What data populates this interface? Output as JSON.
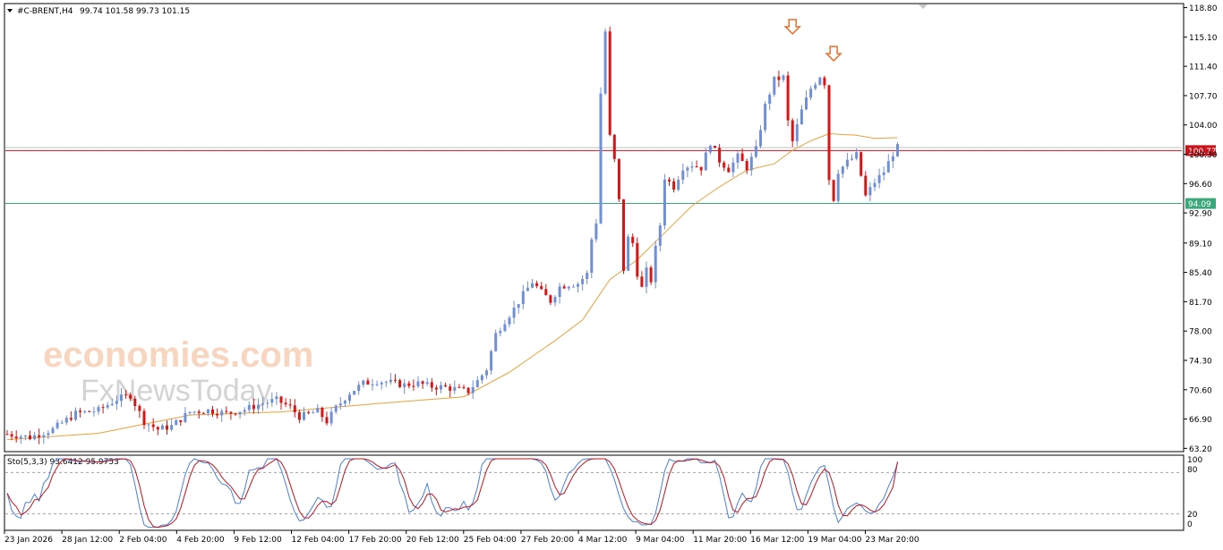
{
  "header": {
    "symbol": "#C-BRENT,H4",
    "ohlc": "99.74 101.58 99.73 101.15"
  },
  "stoch": {
    "label": "Sto(5,3,3) 93.6412 95.9753",
    "levels": [
      "100",
      "80",
      "20",
      "0"
    ]
  },
  "watermark": {
    "line1": "economies.com",
    "line2": "FxNewsToday"
  },
  "colors": {
    "bull": "#6f8fd6",
    "bear": "#d81414",
    "ma": "#e8a13c",
    "resistance": "#c8141c",
    "support": "#3aa87a",
    "arrow": "#e86f2c",
    "stoch_main": "#4a7fd6",
    "stoch_signal": "#c0141c"
  },
  "chart_data": {
    "type": "candlestick",
    "title": "#C-BRENT,H4",
    "y_ticks": [
      118.8,
      115.1,
      111.4,
      107.7,
      104.0,
      100.3,
      96.6,
      92.9,
      89.1,
      85.4,
      81.7,
      78.0,
      74.3,
      70.6,
      66.9,
      63.2
    ],
    "ylim": [
      62.9,
      119.2
    ],
    "x_ticks": [
      "23 Jan 2026",
      "28 Jan 12:00",
      "2 Feb 04:00",
      "4 Feb 20:00",
      "9 Feb 12:00",
      "12 Feb 04:00",
      "17 Feb 20:00",
      "20 Feb 12:00",
      "25 Feb 04:00",
      "27 Feb 20:00",
      "4 Mar 12:00",
      "9 Mar 04:00",
      "11 Mar 20:00",
      "16 Mar 12:00",
      "19 Mar 04:00",
      "23 Mar 20:00"
    ],
    "price_levels": [
      {
        "name": "resistance",
        "value": 100.77,
        "label": "100.77"
      },
      {
        "name": "support",
        "value": 94.09,
        "label": "94.09"
      }
    ],
    "current_price": 101.15,
    "indicator": {
      "name": "Sto(5,3,3)",
      "main": 93.6412,
      "signal": 95.9753,
      "levels": [
        0,
        20,
        80,
        100
      ]
    },
    "path": [
      [
        0,
        65.0
      ],
      [
        5,
        64.6
      ],
      [
        10,
        65.6
      ],
      [
        15,
        67.6
      ],
      [
        20,
        68.0
      ],
      [
        24,
        69.4
      ],
      [
        27,
        69.9
      ],
      [
        30,
        66.6
      ],
      [
        33,
        65.6
      ],
      [
        36,
        66.0
      ],
      [
        40,
        67.8
      ],
      [
        44,
        68.0
      ],
      [
        48,
        67.6
      ],
      [
        52,
        68.1
      ],
      [
        56,
        68.9
      ],
      [
        59,
        69.3
      ],
      [
        62,
        68.4
      ],
      [
        64,
        67.2
      ],
      [
        66,
        67.5
      ],
      [
        68,
        67.9
      ],
      [
        70,
        66.6
      ],
      [
        72,
        68.3
      ],
      [
        75,
        70.2
      ],
      [
        78,
        71.4
      ],
      [
        81,
        71.7
      ],
      [
        84,
        71.5
      ],
      [
        87,
        71.2
      ],
      [
        90,
        71.4
      ],
      [
        93,
        71.0
      ],
      [
        96,
        70.9
      ],
      [
        99,
        70.6
      ],
      [
        101,
        70.4
      ],
      [
        103,
        71.7
      ],
      [
        105,
        73.2
      ],
      [
        107,
        77.6
      ],
      [
        109,
        79.3
      ],
      [
        111,
        80.8
      ],
      [
        113,
        82.6
      ],
      [
        115,
        84.2
      ],
      [
        117,
        82.9
      ],
      [
        119,
        81.8
      ],
      [
        121,
        83.6
      ],
      [
        123,
        83.9
      ],
      [
        125,
        84.0
      ],
      [
        127,
        85.2
      ],
      [
        128,
        89.6
      ],
      [
        129,
        91.8
      ],
      [
        130,
        108.0
      ],
      [
        131,
        115.8
      ],
      [
        132,
        102.5
      ],
      [
        133,
        99.5
      ],
      [
        134,
        94.4
      ],
      [
        135,
        85.8
      ],
      [
        136,
        89.7
      ],
      [
        137,
        89.1
      ],
      [
        138,
        85.3
      ],
      [
        139,
        83.4
      ],
      [
        140,
        85.6
      ],
      [
        141,
        84.4
      ],
      [
        142,
        88.4
      ],
      [
        143,
        91.4
      ],
      [
        144,
        97.4
      ],
      [
        146,
        96.2
      ],
      [
        148,
        98.7
      ],
      [
        150,
        99.0
      ],
      [
        152,
        98.6
      ],
      [
        154,
        101.8
      ],
      [
        156,
        99.5
      ],
      [
        158,
        98.4
      ],
      [
        160,
        100.0
      ],
      [
        162,
        98.6
      ],
      [
        164,
        100.9
      ],
      [
        166,
        106.4
      ],
      [
        168,
        109.7
      ],
      [
        170,
        110.0
      ],
      [
        171,
        104.4
      ],
      [
        172,
        101.9
      ],
      [
        174,
        105.8
      ],
      [
        176,
        108.6
      ],
      [
        178,
        110.2
      ],
      [
        179,
        109.3
      ],
      [
        180,
        97.2
      ],
      [
        181,
        94.7
      ],
      [
        182,
        98.2
      ],
      [
        184,
        99.3
      ],
      [
        186,
        100.2
      ],
      [
        188,
        95.0
      ],
      [
        190,
        96.8
      ],
      [
        192,
        98.1
      ],
      [
        194,
        100.4
      ],
      [
        195,
        101.15
      ]
    ],
    "ma_path": [
      [
        0,
        64.3
      ],
      [
        20,
        65.1
      ],
      [
        40,
        67.4
      ],
      [
        60,
        67.8
      ],
      [
        80,
        68.8
      ],
      [
        100,
        69.7
      ],
      [
        110,
        72.8
      ],
      [
        120,
        76.8
      ],
      [
        126,
        79.4
      ],
      [
        132,
        84.5
      ],
      [
        138,
        87.0
      ],
      [
        144,
        90.4
      ],
      [
        150,
        93.8
      ],
      [
        156,
        96.2
      ],
      [
        162,
        98.3
      ],
      [
        168,
        99.1
      ],
      [
        172,
        100.8
      ],
      [
        176,
        102.0
      ],
      [
        180,
        102.9
      ],
      [
        186,
        102.7
      ],
      [
        190,
        102.3
      ],
      [
        195,
        102.4
      ]
    ],
    "ma_period_hint": "moving average",
    "annotations": [
      {
        "type": "down-arrow",
        "index": 172.0,
        "price": 116.4
      },
      {
        "type": "down-arrow",
        "index": 181.0,
        "price": 113.0
      }
    ]
  }
}
